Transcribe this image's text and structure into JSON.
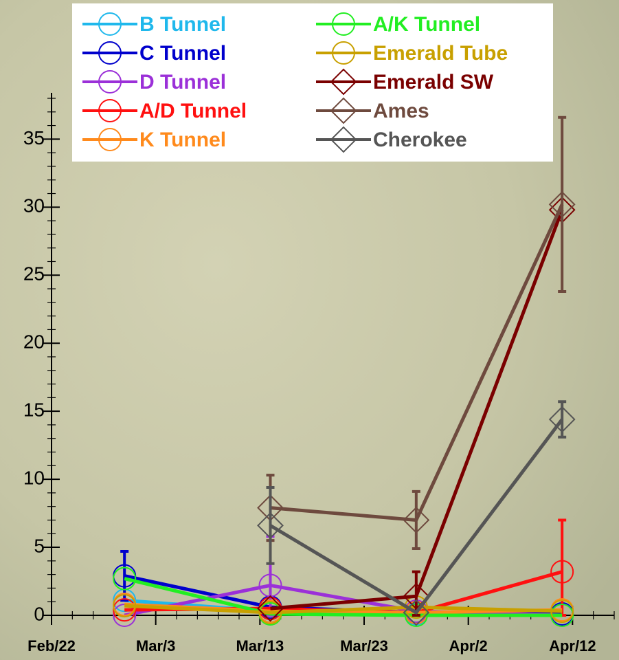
{
  "chart_data": {
    "type": "line",
    "x": [
      7,
      21,
      35,
      49
    ],
    "xlim": [
      0,
      54
    ],
    "xticks": [
      {
        "value": 0,
        "label": "Feb/22"
      },
      {
        "value": 10,
        "label": "Mar/3"
      },
      {
        "value": 20,
        "label": "Mar/13"
      },
      {
        "value": 30,
        "label": "Mar/23"
      },
      {
        "value": 40,
        "label": "Apr/2"
      },
      {
        "value": 50,
        "label": "Apr/12"
      }
    ],
    "ylim": [
      0,
      38
    ],
    "yticks": [
      0,
      5,
      10,
      15,
      20,
      25,
      30,
      35
    ],
    "series": [
      {
        "name": "B Tunnel",
        "color": "#1fb8ec",
        "marker": "circle",
        "values": [
          1.1,
          0.3,
          0.1,
          0.1
        ],
        "errors": [
          null,
          null,
          null,
          null
        ]
      },
      {
        "name": "C Tunnel",
        "color": "#0000cc",
        "marker": "circle",
        "values": [
          2.9,
          0.6,
          0.2,
          0.1
        ],
        "errors": [
          1.8,
          null,
          null,
          null
        ]
      },
      {
        "name": "D Tunnel",
        "color": "#9b30d8",
        "marker": "circle",
        "values": [
          0,
          2.2,
          0.3,
          0
        ],
        "errors": [
          null,
          3.6,
          null,
          null
        ]
      },
      {
        "name": "A/D Tunnel",
        "color": "#ff1010",
        "marker": "circle",
        "values": [
          0.4,
          0.5,
          0.2,
          3.2
        ],
        "errors": [
          null,
          null,
          null,
          3.8
        ]
      },
      {
        "name": "K Tunnel",
        "color": "#ff8a1c",
        "marker": "circle",
        "values": [
          0.8,
          0.3,
          0.2,
          0.4
        ],
        "errors": [
          null,
          null,
          null,
          null
        ]
      },
      {
        "name": "A/K Tunnel",
        "color": "#22ee22",
        "marker": "circle",
        "values": [
          2.7,
          0.1,
          0,
          0
        ],
        "errors": [
          null,
          null,
          null,
          null
        ]
      },
      {
        "name": "Emerald Tube",
        "color": "#c8a000",
        "marker": "circle",
        "values": [
          0.7,
          0.2,
          0.6,
          0.3
        ],
        "errors": [
          null,
          null,
          null,
          null
        ]
      },
      {
        "name": "Emerald SW",
        "color": "#7a0000",
        "marker": "diamond",
        "values": [
          null,
          0.5,
          1.4,
          29.8
        ],
        "errors": [
          null,
          null,
          1.8,
          null
        ]
      },
      {
        "name": "Ames",
        "color": "#6e4a3e",
        "marker": "diamond",
        "values": [
          null,
          7.9,
          7.0,
          30.2
        ],
        "errors": [
          null,
          2.4,
          2.1,
          6.4
        ]
      },
      {
        "name": "Cherokee",
        "color": "#555555",
        "marker": "diamond",
        "values": [
          null,
          6.6,
          0.2,
          14.4
        ],
        "errors": [
          null,
          2.8,
          null,
          1.3
        ]
      }
    ]
  }
}
